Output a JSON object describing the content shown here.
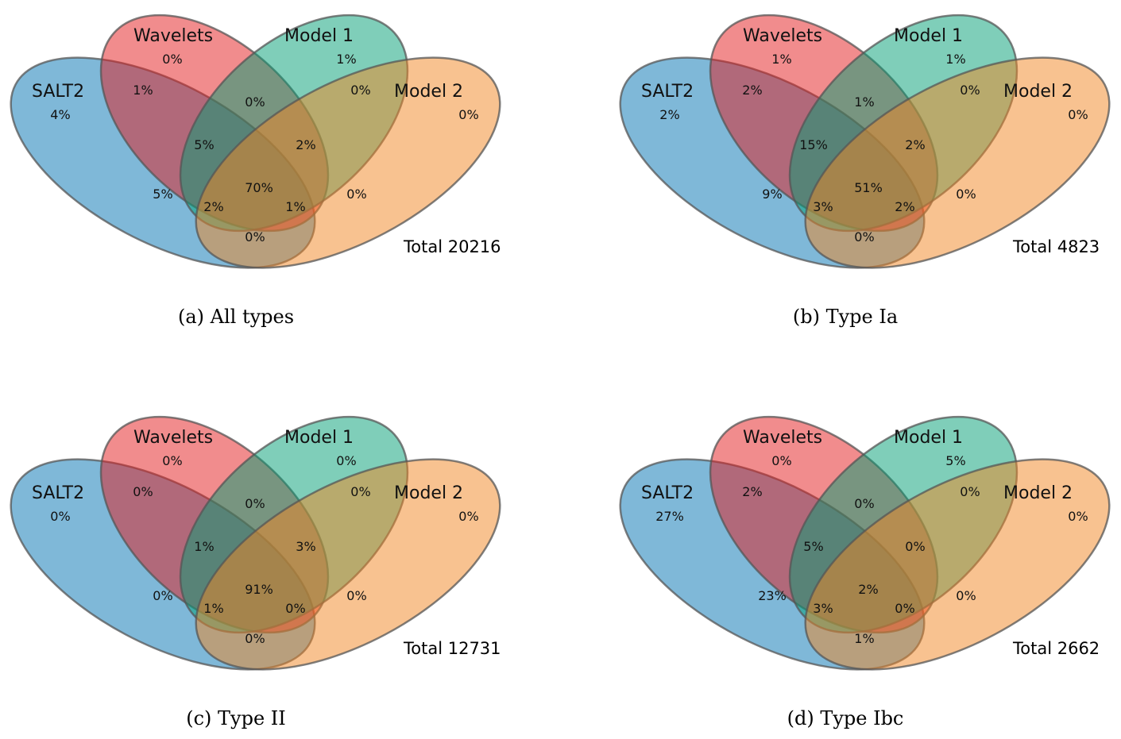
{
  "sets": [
    {
      "key": "salt2",
      "label": "SALT2",
      "color": "#0072b2"
    },
    {
      "key": "wavelets",
      "label": "Wavelets",
      "color": "#e41a1c"
    },
    {
      "key": "model1",
      "label": "Model 1",
      "color": "#009e73"
    },
    {
      "key": "model2",
      "label": "Model 2",
      "color": "#f28522"
    }
  ],
  "region_keys": [
    "salt2_only",
    "wavelets_only",
    "model1_only",
    "model2_only",
    "salt2_wavelets",
    "wavelets_model1",
    "model1_model2",
    "wavelets_model1_model2",
    "salt2_wavelets_model1",
    "salt2_model1",
    "all_four",
    "wavelets_model2",
    "salt2_model1_model2",
    "salt2_wavelets_model2",
    "salt2_model2"
  ],
  "panels": [
    {
      "caption": "(a)  All types",
      "total": "Total 20216",
      "regions": {
        "salt2_only": "4%",
        "wavelets_only": "0%",
        "model1_only": "1%",
        "model2_only": "0%",
        "salt2_wavelets": "1%",
        "wavelets_model1": "0%",
        "model1_model2": "0%",
        "wavelets_model1_model2": "2%",
        "salt2_wavelets_model1": "5%",
        "salt2_model1": "5%",
        "all_four": "70%",
        "wavelets_model2": "0%",
        "salt2_model1_model2": "2%",
        "salt2_wavelets_model2": "1%",
        "salt2_model2": "0%"
      }
    },
    {
      "caption": "(b)  Type Ia",
      "total": "Total 4823",
      "regions": {
        "salt2_only": "2%",
        "wavelets_only": "1%",
        "model1_only": "1%",
        "model2_only": "0%",
        "salt2_wavelets": "2%",
        "wavelets_model1": "1%",
        "model1_model2": "0%",
        "wavelets_model1_model2": "2%",
        "salt2_wavelets_model1": "15%",
        "salt2_model1": "9%",
        "all_four": "51%",
        "wavelets_model2": "0%",
        "salt2_model1_model2": "3%",
        "salt2_wavelets_model2": "2%",
        "salt2_model2": "0%"
      }
    },
    {
      "caption": "(c)  Type II",
      "total": "Total 12731",
      "regions": {
        "salt2_only": "0%",
        "wavelets_only": "0%",
        "model1_only": "0%",
        "model2_only": "0%",
        "salt2_wavelets": "0%",
        "wavelets_model1": "0%",
        "model1_model2": "0%",
        "wavelets_model1_model2": "3%",
        "salt2_wavelets_model1": "1%",
        "salt2_model1": "0%",
        "all_four": "91%",
        "wavelets_model2": "0%",
        "salt2_model1_model2": "1%",
        "salt2_wavelets_model2": "0%",
        "salt2_model2": "0%"
      }
    },
    {
      "caption": "(d)  Type Ibc",
      "total": "Total 2662",
      "regions": {
        "salt2_only": "27%",
        "wavelets_only": "0%",
        "model1_only": "5%",
        "model2_only": "0%",
        "salt2_wavelets": "2%",
        "wavelets_model1": "0%",
        "model1_model2": "0%",
        "wavelets_model1_model2": "0%",
        "salt2_wavelets_model1": "5%",
        "salt2_model1": "23%",
        "all_four": "2%",
        "wavelets_model2": "0%",
        "salt2_model1_model2": "3%",
        "salt2_wavelets_model2": "0%",
        "salt2_model2": "1%"
      }
    }
  ]
}
